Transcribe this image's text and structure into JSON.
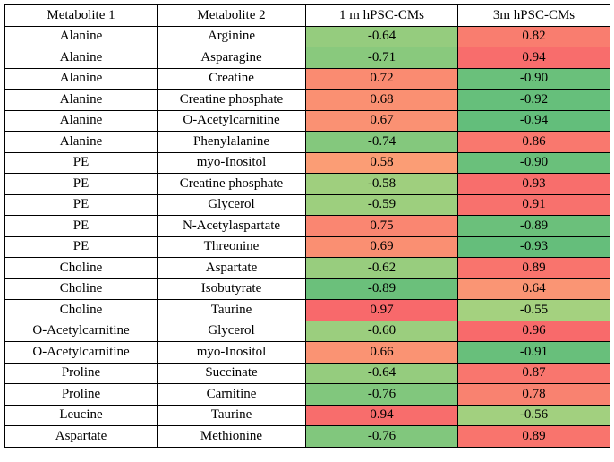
{
  "table": {
    "header": [
      "Metabolite 1",
      "Metabolite 2",
      "1 m hPSC-CMs",
      "3m hPSC-CMs"
    ],
    "rows": [
      [
        "Alanine",
        "Arginine",
        "-0.64",
        "0.82"
      ],
      [
        "Alanine",
        "Asparagine",
        "-0.71",
        "0.94"
      ],
      [
        "Alanine",
        "Creatine",
        "0.72",
        "-0.90"
      ],
      [
        "Alanine",
        "Creatine phosphate",
        "0.68",
        "-0.92"
      ],
      [
        "Alanine",
        "O-Acetylcarnitine",
        "0.67",
        "-0.94"
      ],
      [
        "Alanine",
        "Phenylalanine",
        "-0.74",
        "0.86"
      ],
      [
        "PE",
        "myo-Inositol",
        "0.58",
        "-0.90"
      ],
      [
        "PE",
        "Creatine phosphate",
        "-0.58",
        "0.93"
      ],
      [
        "PE",
        "Glycerol",
        "-0.59",
        "0.91"
      ],
      [
        "PE",
        "N-Acetylaspartate",
        "0.75",
        "-0.89"
      ],
      [
        "PE",
        "Threonine",
        "0.69",
        "-0.93"
      ],
      [
        "Choline",
        "Aspartate",
        "-0.62",
        "0.89"
      ],
      [
        "Choline",
        "Isobutyrate",
        "-0.89",
        "0.64"
      ],
      [
        "Choline",
        "Taurine",
        "0.97",
        "-0.55"
      ],
      [
        "O-Acetylcarnitine",
        "Glycerol",
        "-0.60",
        "0.96"
      ],
      [
        "O-Acetylcarnitine",
        "myo-Inositol",
        "0.66",
        "-0.91"
      ],
      [
        "Proline",
        "Succinate",
        "-0.64",
        "0.87"
      ],
      [
        "Proline",
        "Carnitine",
        "-0.76",
        "0.78"
      ],
      [
        "Leucine",
        "Taurine",
        "0.94",
        "-0.56"
      ],
      [
        "Aspartate",
        "Methionine",
        "-0.76",
        "0.89"
      ]
    ]
  }
}
